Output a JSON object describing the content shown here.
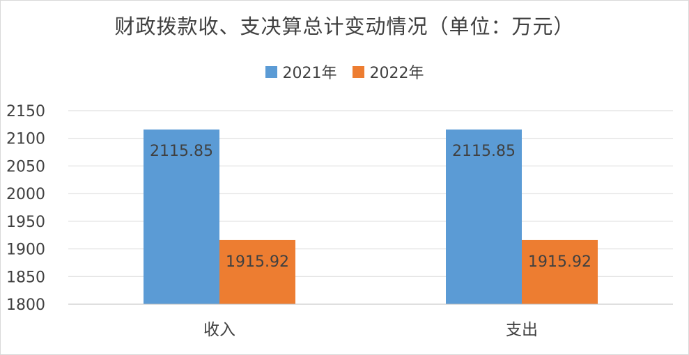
{
  "chart_data": {
    "type": "bar",
    "title": "财政拨款收、支决算总计变动情况（单位：万元）",
    "categories": [
      "收入",
      "支出"
    ],
    "series": [
      {
        "name": "2021年",
        "values": [
          2115.85,
          2115.85
        ],
        "color": "#5b9bd5"
      },
      {
        "name": "2022年",
        "values": [
          1915.92,
          1915.92
        ],
        "color": "#ed7d31"
      }
    ],
    "data_labels": [
      [
        "2115.85",
        "2115.85"
      ],
      [
        "1915.92",
        "1915.92"
      ]
    ],
    "ylim": [
      1800,
      2150
    ],
    "yticks": [
      1800,
      1850,
      1900,
      1950,
      2000,
      2050,
      2100,
      2150
    ],
    "grid": true,
    "legend_position": "top"
  }
}
